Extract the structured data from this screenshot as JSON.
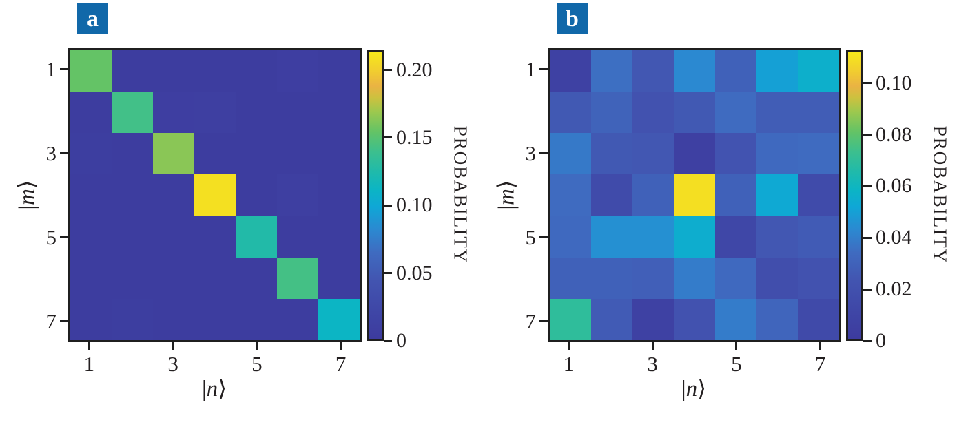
{
  "figure": {
    "background": "#ffffff",
    "text_color": "#231f20",
    "frame_color": "#1f1f1f",
    "panel_tag_bg": "#1168a9",
    "panel_tag_fg": "#ffffff"
  },
  "colormap": [
    [
      0.0,
      "#3d3b9e"
    ],
    [
      0.1,
      "#3f47a7"
    ],
    [
      0.2,
      "#4254b0"
    ],
    [
      0.3,
      "#3f6bc0"
    ],
    [
      0.38,
      "#2b89d1"
    ],
    [
      0.46,
      "#0fa7d6"
    ],
    [
      0.52,
      "#0cb5c4"
    ],
    [
      0.58,
      "#1fbaab"
    ],
    [
      0.65,
      "#3cbf8e"
    ],
    [
      0.72,
      "#63c366"
    ],
    [
      0.79,
      "#9cc84e"
    ],
    [
      0.84,
      "#cdc13f"
    ],
    [
      0.88,
      "#eab343"
    ],
    [
      0.93,
      "#f1cc30"
    ],
    [
      1.0,
      "#f6ea1a"
    ]
  ],
  "chart_data": [
    {
      "type": "heatmap",
      "panel": "a",
      "xlabel": "|n⟩",
      "ylabel": "|m⟩",
      "x_categories": [
        1,
        2,
        3,
        4,
        5,
        6,
        7
      ],
      "y_categories": [
        1,
        2,
        3,
        4,
        5,
        6,
        7
      ],
      "x_ticks": [
        {
          "category": 1,
          "label": "1"
        },
        {
          "category": 3,
          "label": "3"
        },
        {
          "category": 5,
          "label": "5"
        },
        {
          "category": 7,
          "label": "7"
        }
      ],
      "y_ticks": [
        {
          "category": 1,
          "label": "1"
        },
        {
          "category": 3,
          "label": "3"
        },
        {
          "category": 5,
          "label": "5"
        },
        {
          "category": 7,
          "label": "7"
        }
      ],
      "colorbar_label": "PROBABILITY",
      "vmin": 0,
      "vmax": 0.215,
      "colorbar_ticks": [
        {
          "value": 0,
          "label": "0"
        },
        {
          "value": 0.05,
          "label": "0.05"
        },
        {
          "value": 0.1,
          "label": "0.10"
        },
        {
          "value": 0.15,
          "label": "0.15"
        },
        {
          "value": 0.2,
          "label": "0.20"
        }
      ],
      "values": [
        [
          0.155,
          0.003,
          0.003,
          0.003,
          0.003,
          0.006,
          0.003
        ],
        [
          0.003,
          0.142,
          0.006,
          0.007,
          0.003,
          0.003,
          0.003
        ],
        [
          0.005,
          0.003,
          0.165,
          0.003,
          0.003,
          0.003,
          0.003
        ],
        [
          0.003,
          0.003,
          0.003,
          0.21,
          0.003,
          0.007,
          0.003
        ],
        [
          0.003,
          0.003,
          0.003,
          0.003,
          0.126,
          0.003,
          0.003
        ],
        [
          0.003,
          0.003,
          0.003,
          0.003,
          0.003,
          0.143,
          0.003
        ],
        [
          0.003,
          0.005,
          0.003,
          0.003,
          0.003,
          0.003,
          0.112
        ]
      ]
    },
    {
      "type": "heatmap",
      "panel": "b",
      "xlabel": "|n⟩",
      "ylabel": "|m⟩",
      "x_categories": [
        1,
        2,
        3,
        4,
        5,
        6,
        7
      ],
      "y_categories": [
        1,
        2,
        3,
        4,
        5,
        6,
        7
      ],
      "x_ticks": [
        {
          "category": 1,
          "label": "1"
        },
        {
          "category": 3,
          "label": "3"
        },
        {
          "category": 5,
          "label": "5"
        },
        {
          "category": 7,
          "label": "7"
        }
      ],
      "y_ticks": [
        {
          "category": 1,
          "label": "1"
        },
        {
          "category": 3,
          "label": "3"
        },
        {
          "category": 5,
          "label": "5"
        },
        {
          "category": 7,
          "label": "7"
        }
      ],
      "colorbar_label": "PROBABILITY",
      "vmin": 0,
      "vmax": 0.113,
      "colorbar_ticks": [
        {
          "value": 0,
          "label": "0"
        },
        {
          "value": 0.02,
          "label": "0.02"
        },
        {
          "value": 0.04,
          "label": "0.04"
        },
        {
          "value": 0.06,
          "label": "0.06"
        },
        {
          "value": 0.08,
          "label": "0.08"
        },
        {
          "value": 0.1,
          "label": "0.10"
        }
      ],
      "values": [
        [
          0.006,
          0.035,
          0.024,
          0.043,
          0.029,
          0.05,
          0.056
        ],
        [
          0.025,
          0.03,
          0.021,
          0.025,
          0.034,
          0.027,
          0.027
        ],
        [
          0.038,
          0.025,
          0.024,
          0.005,
          0.022,
          0.033,
          0.034
        ],
        [
          0.034,
          0.015,
          0.029,
          0.11,
          0.029,
          0.053,
          0.015
        ],
        [
          0.033,
          0.045,
          0.045,
          0.055,
          0.011,
          0.024,
          0.026
        ],
        [
          0.029,
          0.029,
          0.028,
          0.039,
          0.033,
          0.017,
          0.021
        ],
        [
          0.07,
          0.026,
          0.006,
          0.021,
          0.039,
          0.031,
          0.014
        ]
      ]
    }
  ]
}
